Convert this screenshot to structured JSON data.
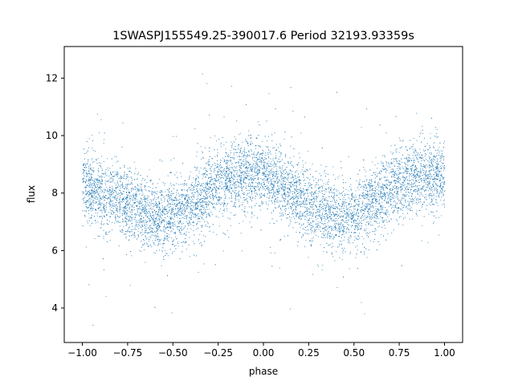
{
  "chart_data": {
    "type": "scatter",
    "title": "1SWASPJ155549.25-390017.6 Period 32193.93359s",
    "xlabel": "phase",
    "ylabel": "flux",
    "xlim": [
      -1.1,
      1.1
    ],
    "ylim": [
      2.8,
      13.1
    ],
    "xticks": [
      -1.0,
      -0.75,
      -0.5,
      -0.25,
      0.0,
      0.25,
      0.5,
      0.75,
      1.0
    ],
    "xtick_labels": [
      "−1.00",
      "−0.75",
      "−0.50",
      "−0.25",
      "0.00",
      "0.25",
      "0.50",
      "0.75",
      "1.00"
    ],
    "yticks": [
      4,
      6,
      8,
      10,
      12
    ],
    "ytick_labels": [
      "4",
      "6",
      "8",
      "10",
      "12"
    ],
    "grid": false,
    "point_color": "#1f77b4",
    "series": [
      {
        "phase_flux_profile": {
          "x": [
            -1.0,
            -0.9,
            -0.8,
            -0.7,
            -0.6,
            -0.55,
            -0.5,
            -0.4,
            -0.3,
            -0.2,
            -0.1,
            0.0,
            0.1,
            0.2,
            0.3,
            0.4,
            0.45,
            0.5,
            0.6,
            0.7,
            0.8,
            0.9,
            1.0
          ],
          "y": [
            8.3,
            8.0,
            7.8,
            7.5,
            7.2,
            7.1,
            7.2,
            7.6,
            8.1,
            8.5,
            8.7,
            8.6,
            8.2,
            7.8,
            7.5,
            7.2,
            7.1,
            7.2,
            7.6,
            8.1,
            8.5,
            8.7,
            8.6
          ]
        },
        "scatter_sigma": 0.6,
        "n_points": 9000
      }
    ]
  }
}
